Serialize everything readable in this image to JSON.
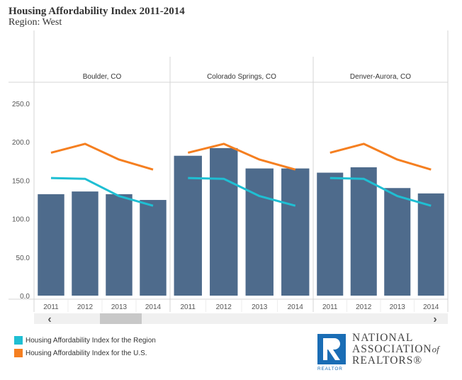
{
  "header": {
    "title": "Housing Affordability Index 2011-2014",
    "subtitle": "Region: West"
  },
  "chart_data": {
    "type": "bar",
    "categories": [
      "2011",
      "2012",
      "2013",
      "2014"
    ],
    "panels": [
      {
        "name": "Boulder, CO",
        "bars": [
          132,
          135.5,
          132,
          124.5
        ],
        "region": [
          153,
          152,
          129.5,
          117
        ],
        "us": [
          186,
          197.5,
          177,
          164
        ]
      },
      {
        "name": "Colorado Springs, CO",
        "bars": [
          182,
          192,
          165.5,
          165.5
        ],
        "region": [
          153,
          152,
          129.5,
          117
        ],
        "us": [
          186,
          197.5,
          177,
          164
        ]
      },
      {
        "name": "Denver-Aurora, CO",
        "bars": [
          160,
          167,
          140,
          133
        ],
        "region": [
          153,
          152,
          129.5,
          117
        ],
        "us": [
          186,
          197.5,
          177,
          164
        ]
      }
    ],
    "ylim": [
      0,
      250
    ],
    "yticks": [
      "0.0",
      "50.0",
      "100.0",
      "150.0",
      "200.0",
      "250.0"
    ],
    "series": [
      {
        "name": "Housing Affordability Index for the Region",
        "type": "line",
        "color": "#1fbfd3"
      },
      {
        "name": "Housing Affordability Index for the U.S.",
        "type": "line",
        "color": "#f57f20"
      }
    ],
    "bar_color": "#4e6b8c",
    "grid": false,
    "legend": "bottom-left"
  },
  "scrollbar": {
    "left_icon": "chevron-left-icon",
    "right_icon": "chevron-right-icon",
    "left": "‹",
    "right": "›"
  },
  "logo": {
    "line1": "NATIONAL",
    "line2": "ASSOCIATION",
    "of": "of",
    "line3": "REALTORS®",
    "badge": "REALTOR",
    "color": "#1a6db5"
  }
}
